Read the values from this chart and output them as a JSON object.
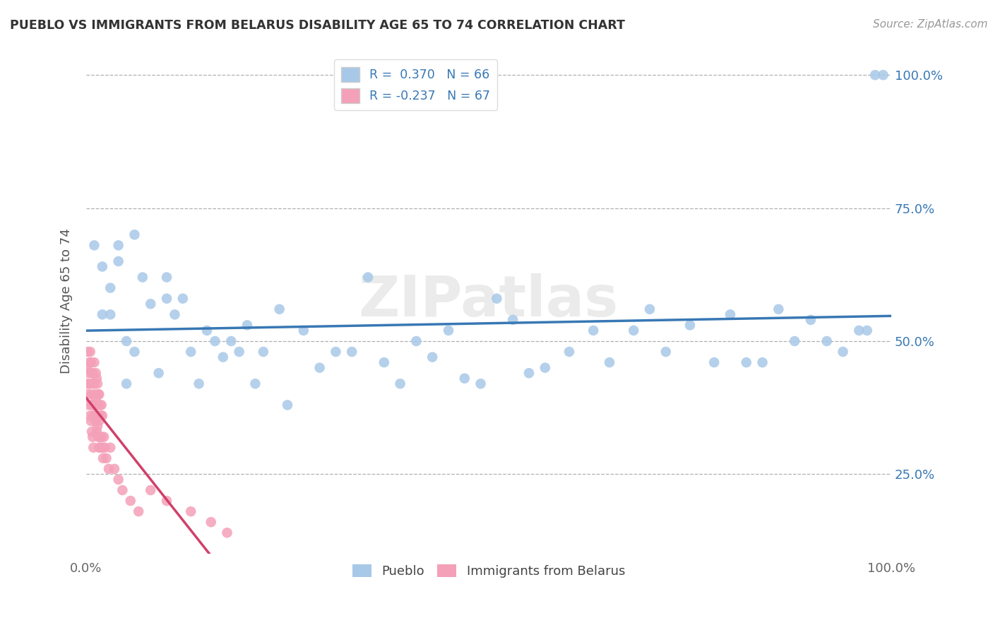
{
  "title": "PUEBLO VS IMMIGRANTS FROM BELARUS DISABILITY AGE 65 TO 74 CORRELATION CHART",
  "source": "Source: ZipAtlas.com",
  "ylabel": "Disability Age 65 to 74",
  "xlim": [
    0,
    1.0
  ],
  "ylim": [
    0.1,
    1.05
  ],
  "ytick_labels_right": [
    "25.0%",
    "50.0%",
    "75.0%",
    "100.0%"
  ],
  "ytick_positions_right": [
    0.25,
    0.5,
    0.75,
    1.0
  ],
  "blue_color": "#a8c8e8",
  "pink_color": "#f4a0b8",
  "blue_line_color": "#3878b4",
  "pink_line_color": "#d0406a",
  "background_color": "#ffffff",
  "pueblo_R": 0.37,
  "pueblo_N": 66,
  "belarus_R": -0.237,
  "belarus_N": 67,
  "pueblo_x": [
    0.01,
    0.02,
    0.02,
    0.03,
    0.03,
    0.04,
    0.04,
    0.05,
    0.05,
    0.06,
    0.06,
    0.07,
    0.08,
    0.09,
    0.1,
    0.1,
    0.11,
    0.12,
    0.13,
    0.14,
    0.15,
    0.16,
    0.17,
    0.18,
    0.19,
    0.2,
    0.21,
    0.22,
    0.24,
    0.25,
    0.27,
    0.29,
    0.31,
    0.33,
    0.35,
    0.37,
    0.39,
    0.41,
    0.43,
    0.45,
    0.47,
    0.49,
    0.51,
    0.53,
    0.55,
    0.57,
    0.6,
    0.63,
    0.65,
    0.68,
    0.7,
    0.72,
    0.75,
    0.78,
    0.8,
    0.82,
    0.84,
    0.86,
    0.88,
    0.9,
    0.92,
    0.94,
    0.96,
    0.97,
    0.98,
    0.99
  ],
  "pueblo_y": [
    0.68,
    0.64,
    0.55,
    0.6,
    0.55,
    0.65,
    0.68,
    0.5,
    0.42,
    0.48,
    0.7,
    0.62,
    0.57,
    0.44,
    0.58,
    0.62,
    0.55,
    0.58,
    0.48,
    0.42,
    0.52,
    0.5,
    0.47,
    0.5,
    0.48,
    0.53,
    0.42,
    0.48,
    0.56,
    0.38,
    0.52,
    0.45,
    0.48,
    0.48,
    0.62,
    0.46,
    0.42,
    0.5,
    0.47,
    0.52,
    0.43,
    0.42,
    0.58,
    0.54,
    0.44,
    0.45,
    0.48,
    0.52,
    0.46,
    0.52,
    0.56,
    0.48,
    0.53,
    0.46,
    0.55,
    0.46,
    0.46,
    0.56,
    0.5,
    0.54,
    0.5,
    0.48,
    0.52,
    0.52,
    1.0,
    1.0
  ],
  "belarus_x": [
    0.001,
    0.001,
    0.002,
    0.002,
    0.003,
    0.003,
    0.004,
    0.004,
    0.005,
    0.005,
    0.005,
    0.006,
    0.006,
    0.006,
    0.007,
    0.007,
    0.007,
    0.008,
    0.008,
    0.008,
    0.009,
    0.009,
    0.009,
    0.01,
    0.01,
    0.01,
    0.011,
    0.011,
    0.012,
    0.012,
    0.012,
    0.013,
    0.013,
    0.013,
    0.014,
    0.014,
    0.014,
    0.015,
    0.015,
    0.015,
    0.016,
    0.016,
    0.016,
    0.017,
    0.017,
    0.018,
    0.018,
    0.019,
    0.019,
    0.02,
    0.02,
    0.021,
    0.022,
    0.023,
    0.025,
    0.028,
    0.03,
    0.035,
    0.04,
    0.045,
    0.055,
    0.065,
    0.08,
    0.1,
    0.13,
    0.155,
    0.175
  ],
  "belarus_y": [
    0.42,
    0.45,
    0.4,
    0.48,
    0.38,
    0.44,
    0.42,
    0.46,
    0.36,
    0.42,
    0.48,
    0.35,
    0.4,
    0.46,
    0.33,
    0.38,
    0.44,
    0.32,
    0.38,
    0.44,
    0.3,
    0.36,
    0.42,
    0.38,
    0.42,
    0.46,
    0.36,
    0.4,
    0.35,
    0.39,
    0.44,
    0.33,
    0.38,
    0.43,
    0.34,
    0.38,
    0.42,
    0.32,
    0.36,
    0.4,
    0.3,
    0.35,
    0.4,
    0.32,
    0.38,
    0.3,
    0.36,
    0.32,
    0.38,
    0.3,
    0.36,
    0.28,
    0.32,
    0.3,
    0.28,
    0.26,
    0.3,
    0.26,
    0.24,
    0.22,
    0.2,
    0.18,
    0.22,
    0.2,
    0.18,
    0.16,
    0.14
  ]
}
